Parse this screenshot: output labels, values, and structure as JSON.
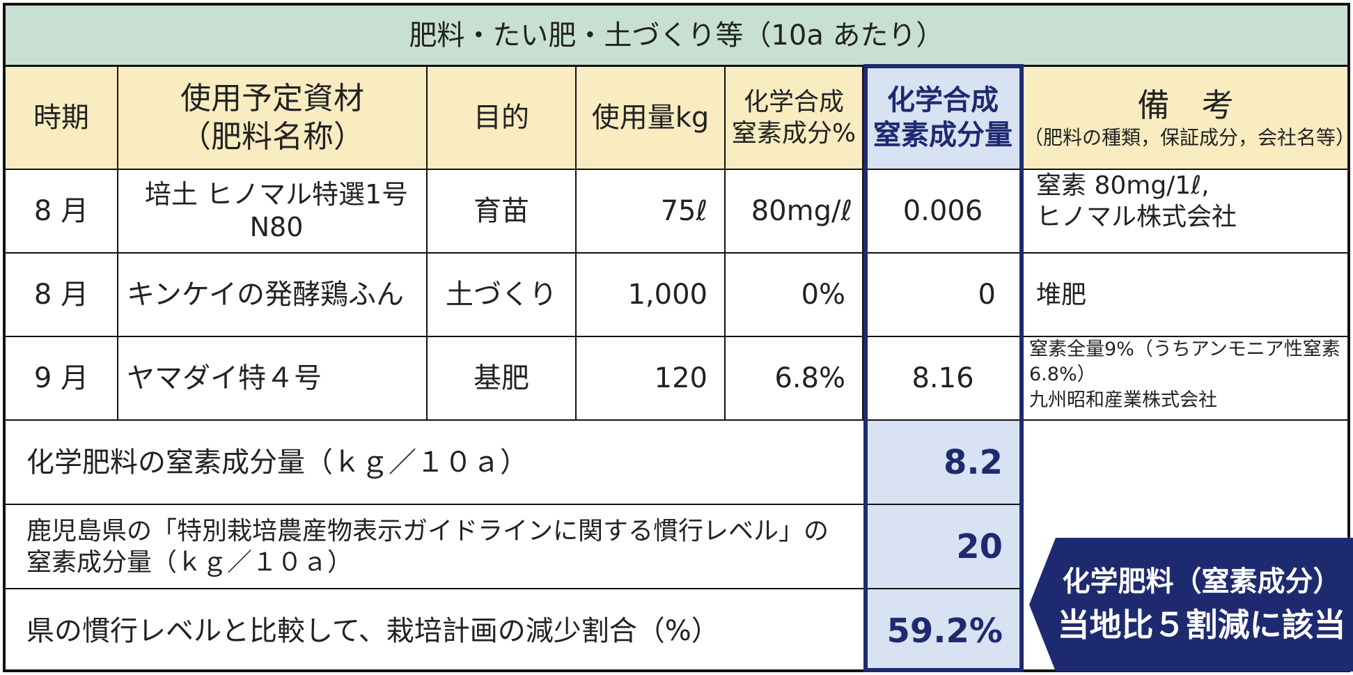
{
  "title": "肥料・たい肥・土づくり等（10a あたり）",
  "headers": {
    "period": "時期",
    "material_line1": "使用予定資材",
    "material_line2": "（肥料名称）",
    "purpose": "目的",
    "amount": "使用量kg",
    "content_line1": "化学合成",
    "content_line2": "窒素成分%",
    "nitrogen_line1": "化学合成",
    "nitrogen_line2": "窒素成分量",
    "remarks_line1": "備　考",
    "remarks_line2": "（肥料の種類，保証成分，会社名等）"
  },
  "rows": [
    {
      "period": "8 月",
      "material": "培土 ヒノマル特選1号N80",
      "purpose": "育苗",
      "amount": "75ℓ",
      "content": "80mg/ℓ",
      "nitrogen": "0.006",
      "remarks_line1": "窒素 80mg/1ℓ,",
      "remarks_line2": "ヒノマル株式会社"
    },
    {
      "period": "8 月",
      "material": "キンケイの発酵鶏ふん",
      "purpose": "土づくり",
      "amount": "1,000",
      "content": "0%",
      "nitrogen": "0",
      "remarks_line1": "堆肥",
      "remarks_line2": ""
    },
    {
      "period": "9 月",
      "material": "ヤマダイ特４号",
      "purpose": "基肥",
      "amount": "120",
      "content": "6.8%",
      "nitrogen": "8.16",
      "remarks_line1": "窒素全量9%（うちアンモニア性窒素6.8%）",
      "remarks_line2": "九州昭和産業株式会社"
    }
  ],
  "summary": [
    {
      "label_line1": "化学肥料の窒素成分量（ｋｇ／１０ａ）",
      "label_line2": "",
      "value": "8.2"
    },
    {
      "label_line1": "鹿児島県の「特別栽培農産物表示ガイドラインに関する慣行レベル」の",
      "label_line2": "窒素成分量（ｋｇ／１０ａ）",
      "value": "20"
    },
    {
      "label_line1": "県の慣行レベルと比較して、栽培計画の減少割合（%）",
      "label_line2": "",
      "value": "59.2%"
    }
  ],
  "callout": {
    "line1": "化学肥料（窒素成分）",
    "line2": "当地比５割減に該当"
  },
  "colors": {
    "title_bg": "#c8e0d2",
    "header_bg": "#f8ecc0",
    "highlight_bg": "#d8e2f3",
    "accent": "#1e2a70"
  }
}
